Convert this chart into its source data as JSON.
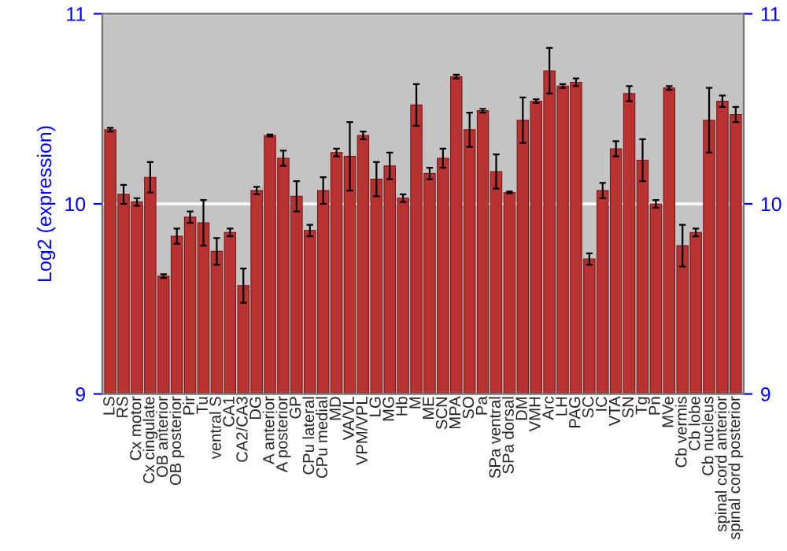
{
  "chart_data": {
    "type": "bar",
    "ylabel": "Log2 (expression)",
    "categories": [
      "LS",
      "RS",
      "Cx motor",
      "Cx cingulate",
      "OB anterior",
      "OB posterior",
      "Pir",
      "Tu",
      "ventral S",
      "CA1",
      "CA2/CA3",
      "DG",
      "A anterior",
      "A posterior",
      "GP",
      "CPu lateral",
      "CPu medial",
      "MD",
      "VA/VL",
      "VPM/VPL",
      "LG",
      "MG",
      "Hb",
      "M",
      "ME",
      "SCN",
      "MPA",
      "SO",
      "Pa",
      "SPa ventral",
      "SPa dorsal",
      "DM",
      "VMH",
      "Arc",
      "LH",
      "PAG",
      "SC",
      "IC",
      "VTA",
      "SN",
      "Tg",
      "Pn",
      "MVe",
      "Cb vermis",
      "Cb lobe",
      "Cb nucleus",
      "spinal cord anterior",
      "spinal cord posterior"
    ],
    "series": [
      {
        "color": "#b83232",
        "values": [
          10.39,
          10.05,
          10.01,
          10.14,
          9.62,
          9.83,
          9.93,
          9.9,
          9.75,
          9.85,
          9.57,
          10.07,
          10.36,
          10.24,
          10.04,
          9.86,
          10.07,
          10.27,
          10.25,
          10.36,
          10.13,
          10.2,
          10.03,
          10.52,
          10.16,
          10.24,
          10.67,
          10.39,
          10.49,
          10.17,
          10.06,
          10.44,
          10.54,
          10.7,
          10.62,
          10.64,
          9.71,
          10.07,
          10.29,
          10.58,
          10.23,
          10.0,
          10.61,
          9.78,
          9.85,
          10.44,
          10.54,
          10.47
        ],
        "errors": [
          0.01,
          0.05,
          0.02,
          0.08,
          0.01,
          0.04,
          0.03,
          0.12,
          0.07,
          0.02,
          0.09,
          0.02,
          0.005,
          0.04,
          0.08,
          0.03,
          0.07,
          0.02,
          0.18,
          0.02,
          0.09,
          0.07,
          0.02,
          0.11,
          0.03,
          0.05,
          0.01,
          0.09,
          0.01,
          0.09,
          0.005,
          0.12,
          0.01,
          0.12,
          0.01,
          0.02,
          0.03,
          0.04,
          0.04,
          0.04,
          0.11,
          0.02,
          0.01,
          0.11,
          0.02,
          0.17,
          0.03,
          0.04
        ]
      }
    ],
    "ylim": [
      9,
      11
    ],
    "yticks": [
      9,
      10,
      11
    ],
    "y2lim": [
      9,
      11
    ],
    "y2ticks": [
      9,
      10,
      11
    ],
    "grid": "y",
    "legend": false
  }
}
